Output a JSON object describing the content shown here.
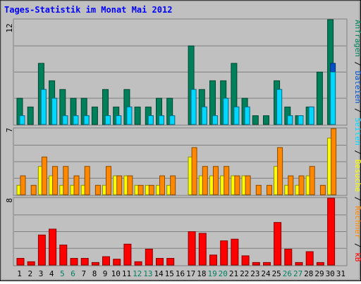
{
  "chart_data": [
    {
      "type": "bar",
      "title": "Tages-Statistik im Monat Mai 2012",
      "categories": [
        "1",
        "2",
        "3",
        "4",
        "5",
        "6",
        "7",
        "8",
        "9",
        "10",
        "11",
        "12",
        "13",
        "14",
        "15",
        "16",
        "17",
        "18",
        "19",
        "20",
        "21",
        "22",
        "23",
        "24",
        "25",
        "26",
        "27",
        "28",
        "29",
        "30",
        "31"
      ],
      "weekend_days": [
        "5",
        "6",
        "12",
        "13",
        "19",
        "20",
        "26",
        "27"
      ],
      "ylim": [
        0,
        12
      ],
      "ytick_label": "12",
      "legend": [
        "Anfragen",
        "Dateien",
        "Seiten"
      ],
      "series": [
        {
          "name": "Anfragen",
          "color": "#00805a",
          "values": [
            3,
            2,
            7,
            5,
            4,
            3,
            3,
            2,
            4,
            2,
            4,
            2,
            2,
            3,
            3,
            0,
            9,
            4,
            5,
            5,
            7,
            3,
            1,
            1,
            5,
            2,
            1,
            2,
            6,
            12,
            0
          ]
        },
        {
          "name": "Dateien",
          "color": "#0050c8",
          "values": [
            1,
            0,
            4,
            3,
            1,
            1,
            1,
            0,
            1,
            1,
            2,
            0,
            1,
            1,
            1,
            0,
            4,
            2,
            1,
            3,
            2,
            2,
            0,
            0,
            4,
            1,
            1,
            2,
            0,
            7,
            0
          ]
        },
        {
          "name": "Seiten",
          "color": "#00d8ff",
          "values": [
            1,
            0,
            4,
            3,
            1,
            1,
            1,
            0,
            1,
            1,
            2,
            0,
            1,
            1,
            1,
            0,
            4,
            2,
            1,
            3,
            2,
            2,
            0,
            0,
            4,
            1,
            1,
            2,
            0,
            6,
            0
          ]
        }
      ]
    },
    {
      "type": "bar",
      "ylim": [
        0,
        7
      ],
      "ytick_label": "7",
      "legend": [
        "Rechner",
        "Besuche"
      ],
      "series": [
        {
          "name": "Besuche",
          "color": "#ffff00",
          "values": [
            1,
            0,
            3,
            2,
            1,
            1,
            1,
            0,
            1,
            2,
            2,
            1,
            1,
            1,
            1,
            0,
            4,
            2,
            2,
            2,
            2,
            2,
            0,
            0,
            3,
            1,
            1,
            2,
            0,
            6,
            0
          ]
        },
        {
          "name": "Rechner",
          "color": "#ff8800",
          "values": [
            2,
            1,
            4,
            3,
            3,
            2,
            3,
            1,
            3,
            2,
            2,
            1,
            1,
            2,
            2,
            0,
            5,
            3,
            3,
            3,
            2,
            2,
            1,
            1,
            5,
            2,
            2,
            3,
            1,
            7,
            0
          ]
        }
      ]
    },
    {
      "type": "bar",
      "ylim": [
        0,
        8
      ],
      "ytick_label": "8",
      "legend": [
        "kB"
      ],
      "series": [
        {
          "name": "kB",
          "color": "#ff0000",
          "values": [
            0.8,
            0.4,
            3.6,
            4.3,
            2.4,
            0.8,
            0.8,
            0.3,
            1.0,
            0.7,
            2.5,
            0.4,
            1.9,
            0.8,
            0.8,
            0,
            4.0,
            3.8,
            1.2,
            2.9,
            3.1,
            1.1,
            0.3,
            0.3,
            5.1,
            1.9,
            0.3,
            1.6,
            0.3,
            8.0,
            0
          ]
        }
      ]
    }
  ]
}
